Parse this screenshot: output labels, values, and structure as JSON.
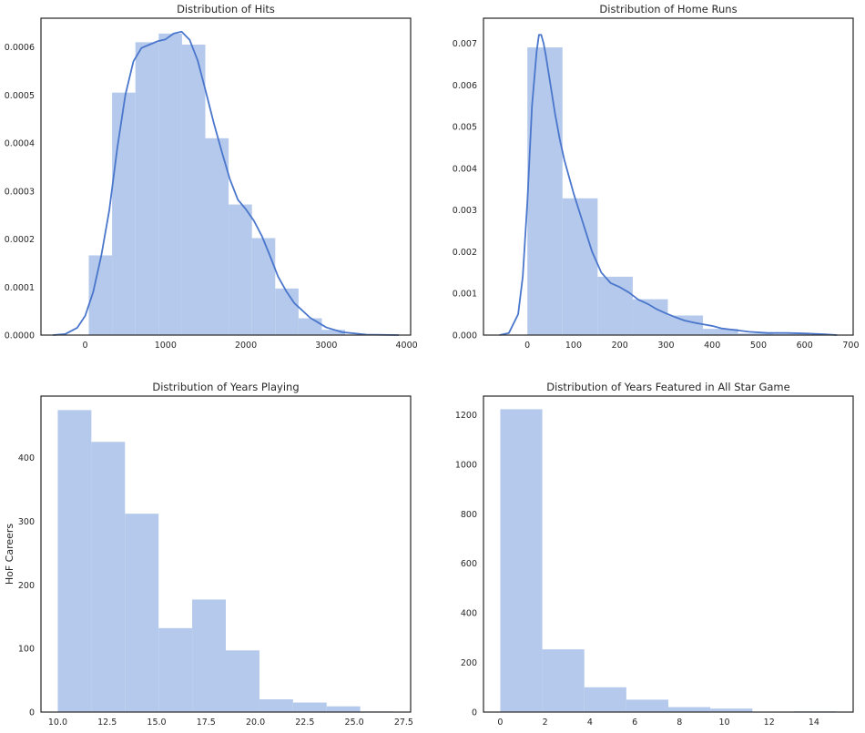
{
  "colors": {
    "bar": "#b4c9eb",
    "line": "#4a76cc",
    "axis": "#262626",
    "background": "#ffffff"
  },
  "chart_data": [
    {
      "id": "hits",
      "type": "bar",
      "title": "Distribution of Hits",
      "xlabel": "",
      "ylabel": "",
      "xlim": [
        -550,
        4050
      ],
      "ylim": [
        0,
        0.00066
      ],
      "xticks": [
        0,
        1000,
        2000,
        3000,
        4000
      ],
      "xtick_labels": [
        "0",
        "1000",
        "2000",
        "3000",
        "4000"
      ],
      "yticks": [
        0,
        0.0001,
        0.0002,
        0.0003,
        0.0004,
        0.0005,
        0.0006
      ],
      "ytick_labels": [
        "0.0000",
        "0.0001",
        "0.0002",
        "0.0003",
        "0.0004",
        "0.0005",
        "0.0006"
      ],
      "bins": [
        {
          "x0": 45,
          "x1": 335,
          "value": 0.000166
        },
        {
          "x0": 335,
          "x1": 625,
          "value": 0.000505
        },
        {
          "x0": 625,
          "x1": 915,
          "value": 0.00061
        },
        {
          "x0": 915,
          "x1": 1205,
          "value": 0.000628
        },
        {
          "x0": 1205,
          "x1": 1495,
          "value": 0.000605
        },
        {
          "x0": 1495,
          "x1": 1785,
          "value": 0.00041
        },
        {
          "x0": 1785,
          "x1": 2075,
          "value": 0.000272
        },
        {
          "x0": 2075,
          "x1": 2365,
          "value": 0.000202
        },
        {
          "x0": 2365,
          "x1": 2655,
          "value": 9.7e-05
        },
        {
          "x0": 2655,
          "x1": 2945,
          "value": 3.5e-05
        },
        {
          "x0": 2945,
          "x1": 3235,
          "value": 1.1e-05
        }
      ],
      "kde": {
        "x": [
          -400,
          -250,
          -100,
          0,
          100,
          200,
          300,
          400,
          500,
          600,
          700,
          800,
          900,
          1000,
          1100,
          1200,
          1300,
          1400,
          1500,
          1600,
          1700,
          1800,
          1900,
          2000,
          2100,
          2200,
          2300,
          2400,
          2500,
          2600,
          2800,
          3000,
          3200,
          3500,
          3900
        ],
        "y": [
          0,
          2e-06,
          1.5e-05,
          4e-05,
          9e-05,
          0.000165,
          0.00026,
          0.00039,
          0.0005,
          0.00057,
          0.000598,
          0.000605,
          0.000612,
          0.000616,
          0.000628,
          0.000632,
          0.000615,
          0.000572,
          0.000508,
          0.000442,
          0.000382,
          0.000325,
          0.000282,
          0.000262,
          0.000238,
          0.000206,
          0.000165,
          0.000122,
          9.2e-05,
          6.7e-05,
          3.6e-05,
          1.6e-05,
          6e-06,
          1e-06,
          0
        ]
      }
    },
    {
      "id": "home-runs",
      "type": "bar",
      "title": "Distribution of Home Runs",
      "xlabel": "",
      "ylabel": "",
      "xlim": [
        -95,
        705
      ],
      "ylim": [
        0,
        0.0076
      ],
      "xticks": [
        0,
        100,
        200,
        300,
        400,
        500,
        600,
        700
      ],
      "xtick_labels": [
        "0",
        "100",
        "200",
        "300",
        "400",
        "500",
        "600",
        "700"
      ],
      "yticks": [
        0,
        0.001,
        0.002,
        0.003,
        0.004,
        0.005,
        0.006,
        0.007
      ],
      "ytick_labels": [
        "0.000",
        "0.001",
        "0.002",
        "0.003",
        "0.004",
        "0.005",
        "0.006",
        "0.007"
      ],
      "bins": [
        {
          "x0": 0,
          "x1": 76,
          "value": 0.0069
        },
        {
          "x0": 76,
          "x1": 152,
          "value": 0.00328
        },
        {
          "x0": 152,
          "x1": 228,
          "value": 0.0014
        },
        {
          "x0": 228,
          "x1": 304,
          "value": 0.00086
        },
        {
          "x0": 304,
          "x1": 380,
          "value": 0.00047
        },
        {
          "x0": 380,
          "x1": 456,
          "value": 0.00015
        },
        {
          "x0": 456,
          "x1": 532,
          "value": 4e-05
        },
        {
          "x0": 532,
          "x1": 608,
          "value": 2e-05
        },
        {
          "x0": 608,
          "x1": 684,
          "value": 1e-05
        }
      ],
      "kde": {
        "x": [
          -60,
          -40,
          -20,
          -10,
          0,
          10,
          20,
          25,
          30,
          35,
          40,
          50,
          60,
          70,
          80,
          90,
          100,
          120,
          140,
          160,
          180,
          200,
          220,
          240,
          260,
          280,
          300,
          320,
          340,
          360,
          380,
          400,
          420,
          450,
          480,
          520,
          560,
          600,
          640,
          670
        ],
        "y": [
          0,
          5e-05,
          0.0005,
          0.0014,
          0.0032,
          0.0055,
          0.0068,
          0.0072,
          0.0072,
          0.007,
          0.0067,
          0.006,
          0.0053,
          0.0047,
          0.0042,
          0.0038,
          0.0034,
          0.0027,
          0.002,
          0.0015,
          0.00125,
          0.00115,
          0.00102,
          0.00085,
          0.00075,
          0.00062,
          0.00052,
          0.00043,
          0.00035,
          0.0003,
          0.00026,
          0.00022,
          0.00016,
          0.00012,
          8e-05,
          5e-05,
          5e-05,
          4e-05,
          2e-05,
          0
        ]
      }
    },
    {
      "id": "years-playing",
      "type": "bar",
      "title": "Distribution of Years Playing",
      "xlabel": "",
      "ylabel": "HoF Careers",
      "xlim": [
        9.15,
        27.85
      ],
      "ylim": [
        0,
        497
      ],
      "xticks": [
        10.0,
        12.5,
        15.0,
        17.5,
        20.0,
        22.5,
        25.0,
        27.5
      ],
      "xtick_labels": [
        "10.0",
        "12.5",
        "15.0",
        "17.5",
        "20.0",
        "22.5",
        "25.0",
        "27.5"
      ],
      "yticks": [
        0,
        100,
        200,
        300,
        400
      ],
      "ytick_labels": [
        "0",
        "100",
        "200",
        "300",
        "400"
      ],
      "bins": [
        {
          "x0": 10.0,
          "x1": 11.7,
          "value": 475
        },
        {
          "x0": 11.7,
          "x1": 13.4,
          "value": 425
        },
        {
          "x0": 13.4,
          "x1": 15.1,
          "value": 312
        },
        {
          "x0": 15.1,
          "x1": 16.8,
          "value": 132
        },
        {
          "x0": 16.8,
          "x1": 18.5,
          "value": 177
        },
        {
          "x0": 18.5,
          "x1": 20.2,
          "value": 97
        },
        {
          "x0": 20.2,
          "x1": 21.9,
          "value": 20
        },
        {
          "x0": 21.9,
          "x1": 23.6,
          "value": 15
        },
        {
          "x0": 23.6,
          "x1": 25.3,
          "value": 9
        },
        {
          "x0": 25.3,
          "x1": 27.0,
          "value": 1
        }
      ]
    },
    {
      "id": "all-star",
      "type": "bar",
      "title": "Distribution of Years Featured in All Star Game",
      "xlabel": "",
      "ylabel": "",
      "xlim": [
        -0.75,
        15.75
      ],
      "ylim": [
        0,
        1275
      ],
      "xticks": [
        0,
        2,
        4,
        6,
        8,
        10,
        12,
        14
      ],
      "xtick_labels": [
        "0",
        "2",
        "4",
        "6",
        "8",
        "10",
        "12",
        "14"
      ],
      "yticks": [
        0,
        200,
        400,
        600,
        800,
        1000,
        1200
      ],
      "ytick_labels": [
        "0",
        "200",
        "400",
        "600",
        "800",
        "1000",
        "1200"
      ],
      "bins": [
        {
          "x0": 0,
          "x1": 1.875,
          "value": 1222
        },
        {
          "x0": 1.875,
          "x1": 3.75,
          "value": 253
        },
        {
          "x0": 3.75,
          "x1": 5.625,
          "value": 100
        },
        {
          "x0": 5.625,
          "x1": 7.5,
          "value": 50
        },
        {
          "x0": 7.5,
          "x1": 9.375,
          "value": 20
        },
        {
          "x0": 9.375,
          "x1": 11.25,
          "value": 14
        },
        {
          "x0": 11.25,
          "x1": 13.125,
          "value": 0
        },
        {
          "x0": 13.125,
          "x1": 15.0,
          "value": 3
        }
      ]
    }
  ]
}
